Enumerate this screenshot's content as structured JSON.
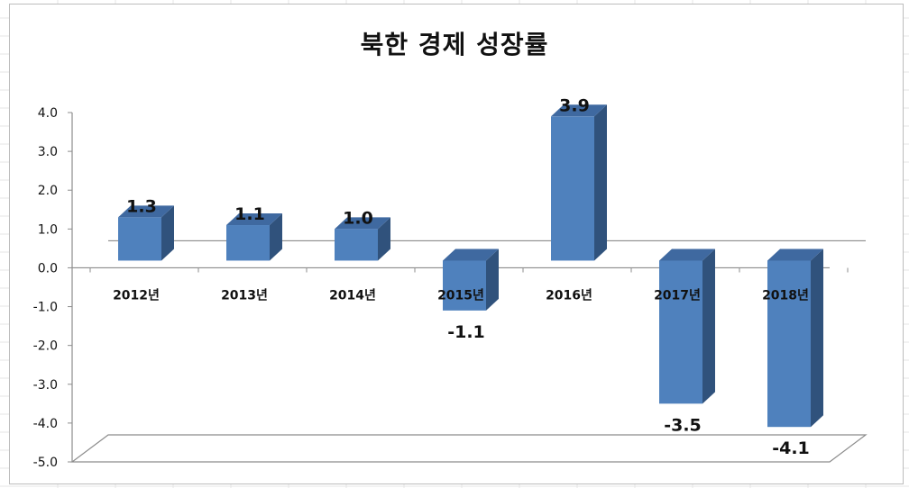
{
  "chart_data": {
    "type": "bar",
    "title": "북한 경제 성장률",
    "categories": [
      "2012년",
      "2013년",
      "2014년",
      "2015년",
      "2016년",
      "2017년",
      "2018년"
    ],
    "values": [
      1.3,
      1.1,
      1.0,
      -1.1,
      3.9,
      -3.5,
      -4.1
    ],
    "data_labels": [
      "1.3",
      "1.1",
      "1.0",
      "-1.1",
      "3.9",
      "-3.5",
      "-4.1"
    ],
    "y_ticks": [
      "4.0",
      "3.0",
      "2.0",
      "1.0",
      "0.0",
      "-1.0",
      "-2.0",
      "-3.0",
      "-4.0",
      "-5.0"
    ],
    "ylim": [
      -5,
      4
    ],
    "xlabel": "",
    "ylabel": "",
    "legend": "none",
    "grid": false,
    "style": "3d-column",
    "colors": {
      "bar_front": "#4f81bd",
      "bar_top": "#3f69a0",
      "bar_side": "#30527c",
      "axis": "#8c8c8c",
      "text": "#111111"
    }
  }
}
